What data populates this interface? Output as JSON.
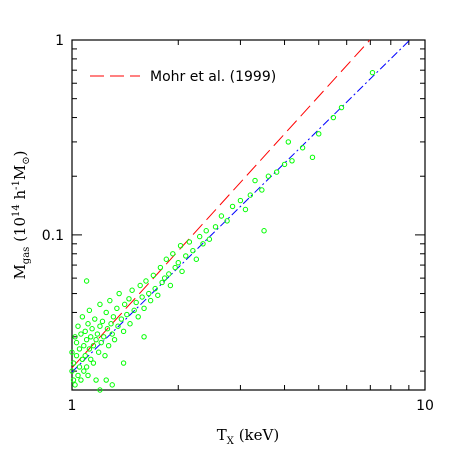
{
  "chart_data": {
    "type": "scatter",
    "xlabel": [
      "T",
      "X",
      " (keV)"
    ],
    "ylabel": [
      "M",
      "gas",
      " (10",
      "14",
      " h",
      "-1",
      "M",
      "⊙",
      ")"
    ],
    "xscale": "log",
    "yscale": "log",
    "xlim": [
      1,
      10
    ],
    "ylim": [
      0.016,
      1
    ],
    "xticks": [
      1,
      10
    ],
    "yticks": [
      0.1,
      1
    ],
    "xminorticks": [
      2,
      3,
      4,
      5,
      6,
      7,
      8,
      9
    ],
    "yminorticks": [
      0.02,
      0.03,
      0.04,
      0.05,
      0.06,
      0.07,
      0.08,
      0.09,
      0.2,
      0.3,
      0.4,
      0.5,
      0.6,
      0.7,
      0.8,
      0.9
    ],
    "legend": "upper left",
    "scatter": {
      "color": "#00ff00",
      "x": [
        1.0,
        1.0,
        1.01,
        1.01,
        1.02,
        1.02,
        1.03,
        1.03,
        1.04,
        1.04,
        1.05,
        1.05,
        1.06,
        1.06,
        1.07,
        1.07,
        1.08,
        1.08,
        1.09,
        1.09,
        1.1,
        1.1,
        1.11,
        1.11,
        1.12,
        1.12,
        1.13,
        1.13,
        1.14,
        1.15,
        1.15,
        1.16,
        1.17,
        1.17,
        1.18,
        1.19,
        1.2,
        1.2,
        1.21,
        1.22,
        1.23,
        1.24,
        1.25,
        1.26,
        1.27,
        1.28,
        1.29,
        1.3,
        1.31,
        1.32,
        1.34,
        1.35,
        1.36,
        1.38,
        1.4,
        1.41,
        1.43,
        1.45,
        1.46,
        1.48,
        1.5,
        1.52,
        1.54,
        1.56,
        1.58,
        1.6,
        1.62,
        1.65,
        1.67,
        1.7,
        1.72,
        1.75,
        1.78,
        1.8,
        1.83,
        1.85,
        1.88,
        1.9,
        1.93,
        1.96,
        2.0,
        2.03,
        2.05,
        2.1,
        2.15,
        2.2,
        2.25,
        2.3,
        2.35,
        2.4,
        2.45,
        2.55,
        2.65,
        2.75,
        2.85,
        3.0,
        3.1,
        3.2,
        3.3,
        3.45,
        3.6,
        3.5,
        3.8,
        4.0,
        4.1,
        4.2,
        4.5,
        4.8,
        5.0,
        5.5,
        5.8,
        7.1,
        1.4,
        1.3,
        1.2,
        1.6,
        1.1,
        1.25
      ],
      "y": [
        0.02,
        0.025,
        0.018,
        0.022,
        0.03,
        0.017,
        0.024,
        0.028,
        0.019,
        0.034,
        0.021,
        0.026,
        0.031,
        0.018,
        0.023,
        0.038,
        0.027,
        0.02,
        0.032,
        0.024,
        0.029,
        0.021,
        0.035,
        0.019,
        0.026,
        0.041,
        0.03,
        0.023,
        0.033,
        0.027,
        0.022,
        0.037,
        0.029,
        0.018,
        0.031,
        0.025,
        0.034,
        0.044,
        0.028,
        0.036,
        0.03,
        0.024,
        0.04,
        0.033,
        0.027,
        0.046,
        0.035,
        0.031,
        0.038,
        0.029,
        0.042,
        0.034,
        0.05,
        0.037,
        0.032,
        0.044,
        0.039,
        0.047,
        0.035,
        0.052,
        0.041,
        0.045,
        0.038,
        0.055,
        0.048,
        0.042,
        0.058,
        0.05,
        0.046,
        0.062,
        0.053,
        0.049,
        0.068,
        0.057,
        0.06,
        0.075,
        0.063,
        0.055,
        0.08,
        0.068,
        0.072,
        0.088,
        0.065,
        0.078,
        0.092,
        0.083,
        0.075,
        0.098,
        0.09,
        0.105,
        0.095,
        0.11,
        0.125,
        0.118,
        0.14,
        0.15,
        0.135,
        0.16,
        0.19,
        0.17,
        0.2,
        0.105,
        0.21,
        0.23,
        0.3,
        0.24,
        0.28,
        0.25,
        0.33,
        0.4,
        0.45,
        0.68,
        0.022,
        0.017,
        0.016,
        0.03,
        0.058,
        0.018
      ]
    },
    "lines": [
      {
        "name": "Mohr et al. (1999)",
        "color": "#ff0000",
        "dash": "dashed",
        "x": [
          1,
          6.98
        ],
        "y": [
          0.0208,
          1
        ]
      },
      {
        "color": "#0000ff",
        "dash": "dashdot",
        "x": [
          1,
          9.06
        ],
        "y": [
          0.0198,
          1
        ]
      }
    ]
  }
}
